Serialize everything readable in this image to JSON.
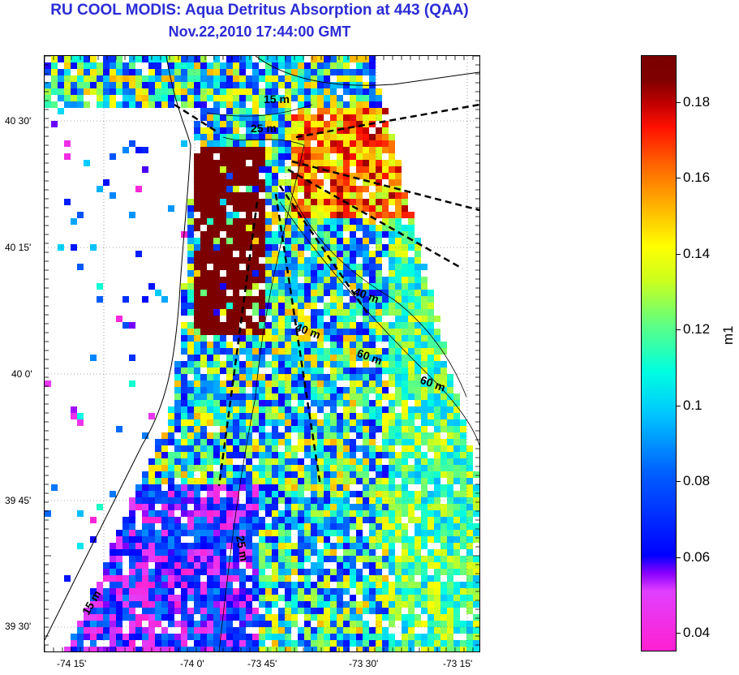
{
  "title": "RU COOL MODIS: Aqua Detritus Absorption at 443 (QAA)",
  "subtitle": "Nov.22,2010 17:44:00 GMT",
  "map": {
    "lon_ticks": [
      "-74 15'",
      "-74 0'",
      "-73 45'",
      "-73 30'",
      "-73 15'"
    ],
    "lat_ticks": [
      "40 30'",
      "40 15'",
      "40 0'",
      "39 45'",
      "39 30'"
    ],
    "contour_labels": [
      "15 m",
      "25 m",
      "40 m",
      "40 m",
      "60 m",
      "60 m",
      "25 m",
      "15 m"
    ]
  },
  "colorbar": {
    "unit": "m1",
    "ticks": [
      "0.18",
      "0.16",
      "0.14",
      "0.12",
      "0.1",
      "0.08",
      "0.06",
      "0.04"
    ]
  }
}
